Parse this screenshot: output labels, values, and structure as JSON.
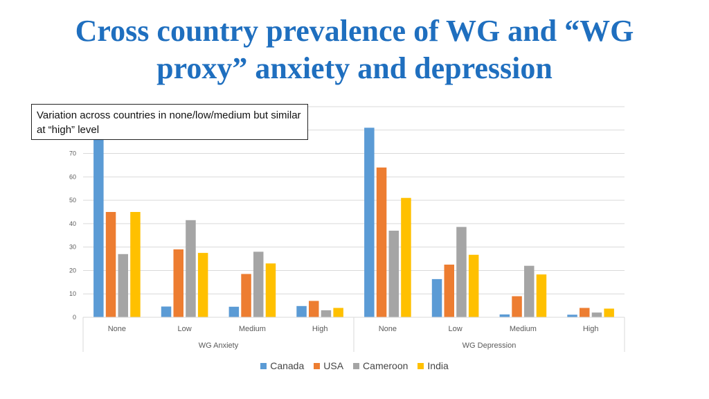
{
  "slide": {
    "title": "Cross country prevalence of WG and “WG proxy” anxiety and depression",
    "callout": "Variation across countries in none/low/medium but similar at “high” level"
  },
  "chart_data": {
    "type": "bar",
    "title": "",
    "xlabel": "",
    "ylabel": "",
    "ylim": [
      0,
      90
    ],
    "yticks": [
      0,
      10,
      20,
      30,
      40,
      50,
      60,
      70
    ],
    "grid": true,
    "legend_position": "bottom",
    "groups": [
      {
        "label": "WG Anxiety",
        "categories": [
          "None",
          "Low",
          "Medium",
          "High"
        ]
      },
      {
        "label": "WG Depression",
        "categories": [
          "None",
          "Low",
          "Medium",
          "High"
        ]
      }
    ],
    "series": [
      {
        "name": "Canada",
        "color": "#5b9bd5",
        "values": [
          79,
          4.6,
          4.5,
          4.8,
          81,
          16.3,
          1.2,
          1.1
        ]
      },
      {
        "name": "USA",
        "color": "#ed7d31",
        "values": [
          45,
          29,
          18.5,
          7,
          64,
          22.5,
          9,
          4
        ]
      },
      {
        "name": "Cameroon",
        "color": "#a5a5a5",
        "values": [
          27,
          41.5,
          28,
          3,
          37,
          38.6,
          22,
          2
        ]
      },
      {
        "name": "India",
        "color": "#ffc000",
        "values": [
          45,
          27.5,
          23,
          4,
          51,
          26.7,
          18.3,
          3.7
        ]
      }
    ]
  }
}
